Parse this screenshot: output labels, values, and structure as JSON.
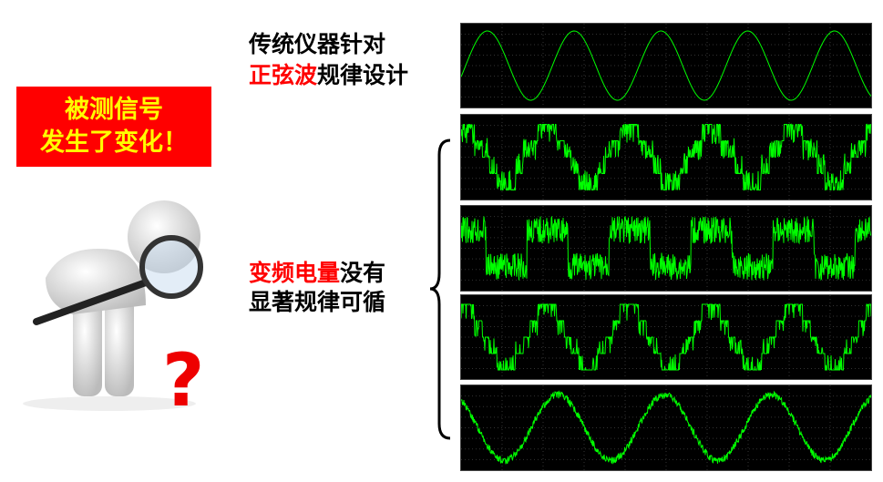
{
  "alert_box": {
    "line1": "被测信号",
    "line2": "发生了变化！"
  },
  "top_caption": {
    "line1": "传统仪器针对",
    "line2_highlight": "正弦波",
    "line2_rest": "规律设计"
  },
  "bottom_caption": {
    "line1_highlight": "变频电量",
    "line1_rest": "没有",
    "line2": "显著规律可循"
  },
  "colors": {
    "highlight": "#ff0000",
    "alert_bg": "#ff0000",
    "alert_text": "#ffff00",
    "trace": "#00ff00",
    "scope_bg": "#000000"
  },
  "illustration": {
    "icon": "person-with-magnifier-icon",
    "question_mark": "?"
  },
  "scopes": [
    {
      "waveform": "sine"
    },
    {
      "waveform": "stepped-pwm"
    },
    {
      "waveform": "noisy-square-pwm"
    },
    {
      "waveform": "stepped-square"
    },
    {
      "waveform": "sine-with-ripple"
    }
  ]
}
